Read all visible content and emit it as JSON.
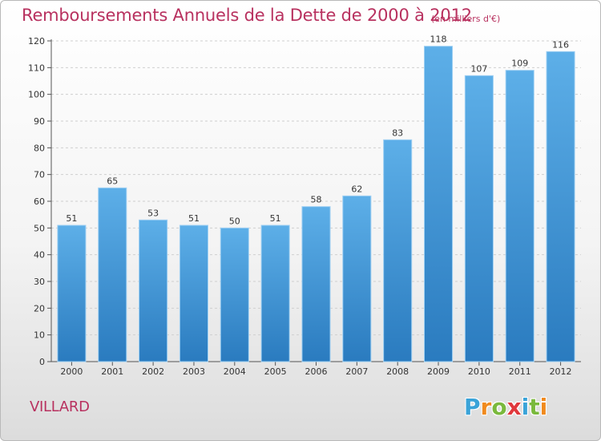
{
  "title": "Remboursements Annuels de la Dette de 2000 à 2012",
  "unit": "(en milliers d'€)",
  "commune": "VILLARD",
  "logo": {
    "letters": [
      "P",
      "r",
      "o",
      "x",
      "i",
      "t",
      "i"
    ],
    "colors": [
      "#3aa3d8",
      "#f08a1e",
      "#7ab93d",
      "#e0383c",
      "#3aa3d8",
      "#7ab93d",
      "#f08a1e"
    ]
  },
  "chart_data": {
    "type": "bar",
    "categories": [
      "2000",
      "2001",
      "2002",
      "2003",
      "2004",
      "2005",
      "2006",
      "2007",
      "2008",
      "2009",
      "2010",
      "2011",
      "2012"
    ],
    "values": [
      51,
      65,
      53,
      51,
      50,
      51,
      58,
      62,
      83,
      118,
      107,
      109,
      116
    ],
    "ylim": [
      0,
      120
    ],
    "yticks": [
      0,
      10,
      20,
      30,
      40,
      50,
      60,
      70,
      80,
      90,
      100,
      110,
      120
    ],
    "grid": true,
    "bar_color_top": "#5dafe8",
    "bar_color_bottom": "#2a7bbf"
  }
}
